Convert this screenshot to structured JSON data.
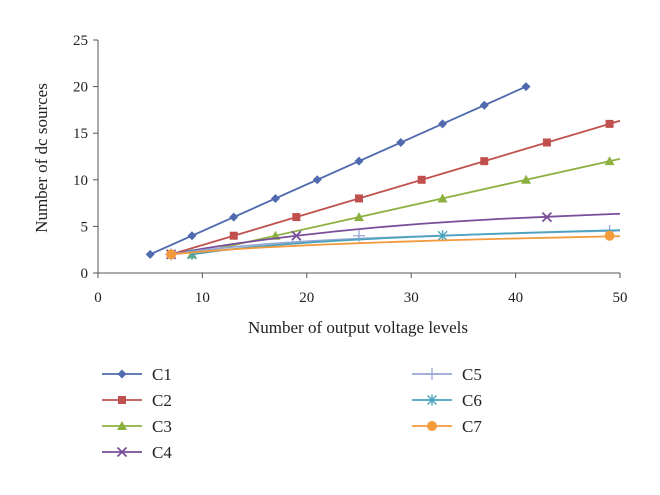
{
  "chart_data": {
    "type": "line",
    "xlabel": "Number of output voltage levels",
    "ylabel": "Number of dc sources",
    "xlim": [
      0,
      50
    ],
    "ylim": [
      0,
      25
    ],
    "xticks": [
      0,
      10,
      20,
      30,
      40,
      50
    ],
    "yticks": [
      0,
      5,
      10,
      15,
      20,
      25
    ],
    "grid": false,
    "legend": "below",
    "series": [
      {
        "name": "C1",
        "color": "#4f6aae",
        "marker": "diamond",
        "x": [
          5,
          9,
          13,
          17,
          21,
          25,
          29,
          33,
          37,
          41
        ],
        "y": [
          2,
          4,
          6,
          8,
          10,
          12,
          14,
          16,
          18,
          20
        ],
        "line_x": [
          5,
          41
        ],
        "line_y": [
          2,
          20
        ]
      },
      {
        "name": "C2",
        "color": "#c0504d",
        "marker": "square",
        "x": [
          7,
          13,
          19,
          25,
          31,
          37,
          43,
          49
        ],
        "y": [
          2,
          4,
          6,
          8,
          10,
          12,
          14,
          16
        ],
        "line_x": [
          7,
          50
        ],
        "line_y": [
          2,
          16.33
        ]
      },
      {
        "name": "C3",
        "color": "#8db141",
        "marker": "triangle",
        "x": [
          9,
          17,
          25,
          33,
          41,
          49
        ],
        "y": [
          2,
          4,
          6,
          8,
          10,
          12
        ],
        "line_x": [
          9,
          50
        ],
        "line_y": [
          2,
          12.25
        ]
      },
      {
        "name": "C4",
        "color": "#7a4f9a",
        "marker": "x",
        "x": [
          7,
          19,
          43
        ],
        "y": [
          2,
          4,
          6
        ],
        "line_x": [
          7,
          10,
          13,
          16,
          19,
          23,
          27,
          31,
          35,
          39,
          43,
          47,
          50
        ],
        "line_y": [
          2,
          2.6,
          3.12,
          3.58,
          4.0,
          4.49,
          4.92,
          5.28,
          5.58,
          5.83,
          6.03,
          6.22,
          6.36
        ]
      },
      {
        "name": "C5",
        "color": "#9aa7d6",
        "marker": "plus",
        "x": [
          7,
          25,
          49
        ],
        "y": [
          2,
          4,
          4.5
        ],
        "line_x": [
          7,
          10,
          13,
          16,
          19,
          22,
          25,
          29,
          33,
          37,
          41,
          45,
          50
        ],
        "line_y": [
          2,
          2.45,
          2.8,
          3.1,
          3.33,
          3.52,
          3.68,
          3.86,
          4.02,
          4.16,
          4.29,
          4.41,
          4.55
        ]
      },
      {
        "name": "C6",
        "color": "#4aa3bd",
        "marker": "asterisk",
        "x": [
          9,
          33
        ],
        "y": [
          2,
          4
        ],
        "line_x": [
          9,
          12,
          15,
          18,
          21,
          24,
          27,
          30,
          33,
          37,
          41,
          45,
          50
        ],
        "line_y": [
          2,
          2.45,
          2.8,
          3.08,
          3.33,
          3.53,
          3.71,
          3.86,
          4.0,
          4.17,
          4.32,
          4.45,
          4.6
        ]
      },
      {
        "name": "C7",
        "color": "#f39a3d",
        "marker": "circle",
        "x": [
          7,
          49
        ],
        "y": [
          2,
          4
        ],
        "line_x": [
          7,
          10,
          13,
          16,
          19,
          22,
          25,
          29,
          33,
          37,
          41,
          45,
          49,
          50
        ],
        "line_y": [
          2,
          2.3,
          2.55,
          2.75,
          2.92,
          3.07,
          3.2,
          3.36,
          3.5,
          3.62,
          3.73,
          3.83,
          3.93,
          3.95
        ]
      }
    ]
  }
}
